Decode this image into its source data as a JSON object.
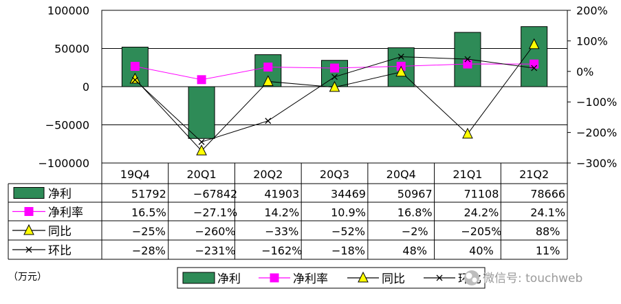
{
  "chart_data": {
    "type": "bar",
    "categories": [
      "19Q4",
      "20Q1",
      "20Q2",
      "20Q3",
      "20Q4",
      "21Q1",
      "21Q2"
    ],
    "unit_label": "（万元）",
    "left_axis": {
      "ticks": [
        "100000",
        "50000",
        "0",
        "−50000",
        "−100000"
      ],
      "ylim": [
        -100000,
        100000
      ]
    },
    "right_axis": {
      "ticks": [
        "200%",
        "100%",
        "0%",
        "−100%",
        "−200%",
        "−300%"
      ],
      "ylim": [
        -300,
        200
      ]
    },
    "series": [
      {
        "name": "净利",
        "kind": "bar",
        "axis": "left",
        "color": "#2e8b57",
        "values": [
          51792,
          -67842,
          41903,
          34469,
          50967,
          71108,
          78666
        ],
        "labels": [
          "51792",
          "−67842",
          "41903",
          "34469",
          "50967",
          "71108",
          "78666"
        ]
      },
      {
        "name": "净利率",
        "kind": "line",
        "axis": "right",
        "color": "#ff00ff",
        "marker": "square",
        "values": [
          16.5,
          -27.1,
          14.2,
          10.9,
          16.8,
          24.2,
          24.1
        ],
        "labels": [
          "16.5%",
          "−27.1%",
          "14.2%",
          "10.9%",
          "16.8%",
          "24.2%",
          "24.1%"
        ]
      },
      {
        "name": "同比",
        "kind": "line",
        "axis": "right",
        "color": "#000000",
        "marker": "triangle",
        "values": [
          -25,
          -260,
          -33,
          -52,
          -2,
          -205,
          88
        ],
        "labels": [
          "−25%",
          "−260%",
          "−33%",
          "−52%",
          "−2%",
          "−205%",
          "88%"
        ]
      },
      {
        "name": "环比",
        "kind": "line",
        "axis": "right",
        "color": "#000000",
        "marker": "x",
        "values": [
          -28,
          -231,
          -162,
          -18,
          48,
          40,
          11
        ],
        "labels": [
          "−28%",
          "−231%",
          "−162%",
          "−18%",
          "48%",
          "40%",
          "11%"
        ]
      }
    ],
    "legend_labels": [
      "净利",
      "净利率",
      "同比",
      "环比"
    ],
    "grid": true,
    "legend_position": "bottom"
  },
  "watermark": "微信号: touchweb"
}
